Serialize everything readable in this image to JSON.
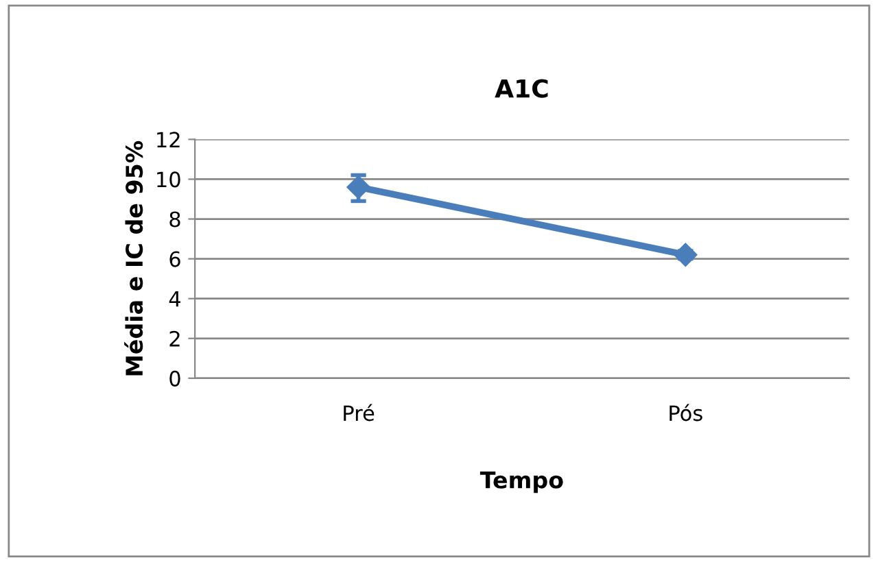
{
  "chart_data": {
    "type": "line",
    "title": "A1C",
    "xlabel": "Tempo",
    "ylabel": "Média e IC de 95%",
    "categories": [
      "Pré",
      "Pós"
    ],
    "series": [
      {
        "color": "#4a7ebb",
        "values": [
          9.6,
          6.2
        ],
        "errors": [
          [
            8.9,
            10.2
          ],
          [
            6.0,
            6.4
          ]
        ]
      }
    ],
    "ylim": [
      0,
      12
    ],
    "yticks": [
      0,
      2,
      4,
      6,
      8,
      10,
      12
    ],
    "grid": "y",
    "legend": false,
    "marker": "diamond",
    "line_style": "solid"
  }
}
